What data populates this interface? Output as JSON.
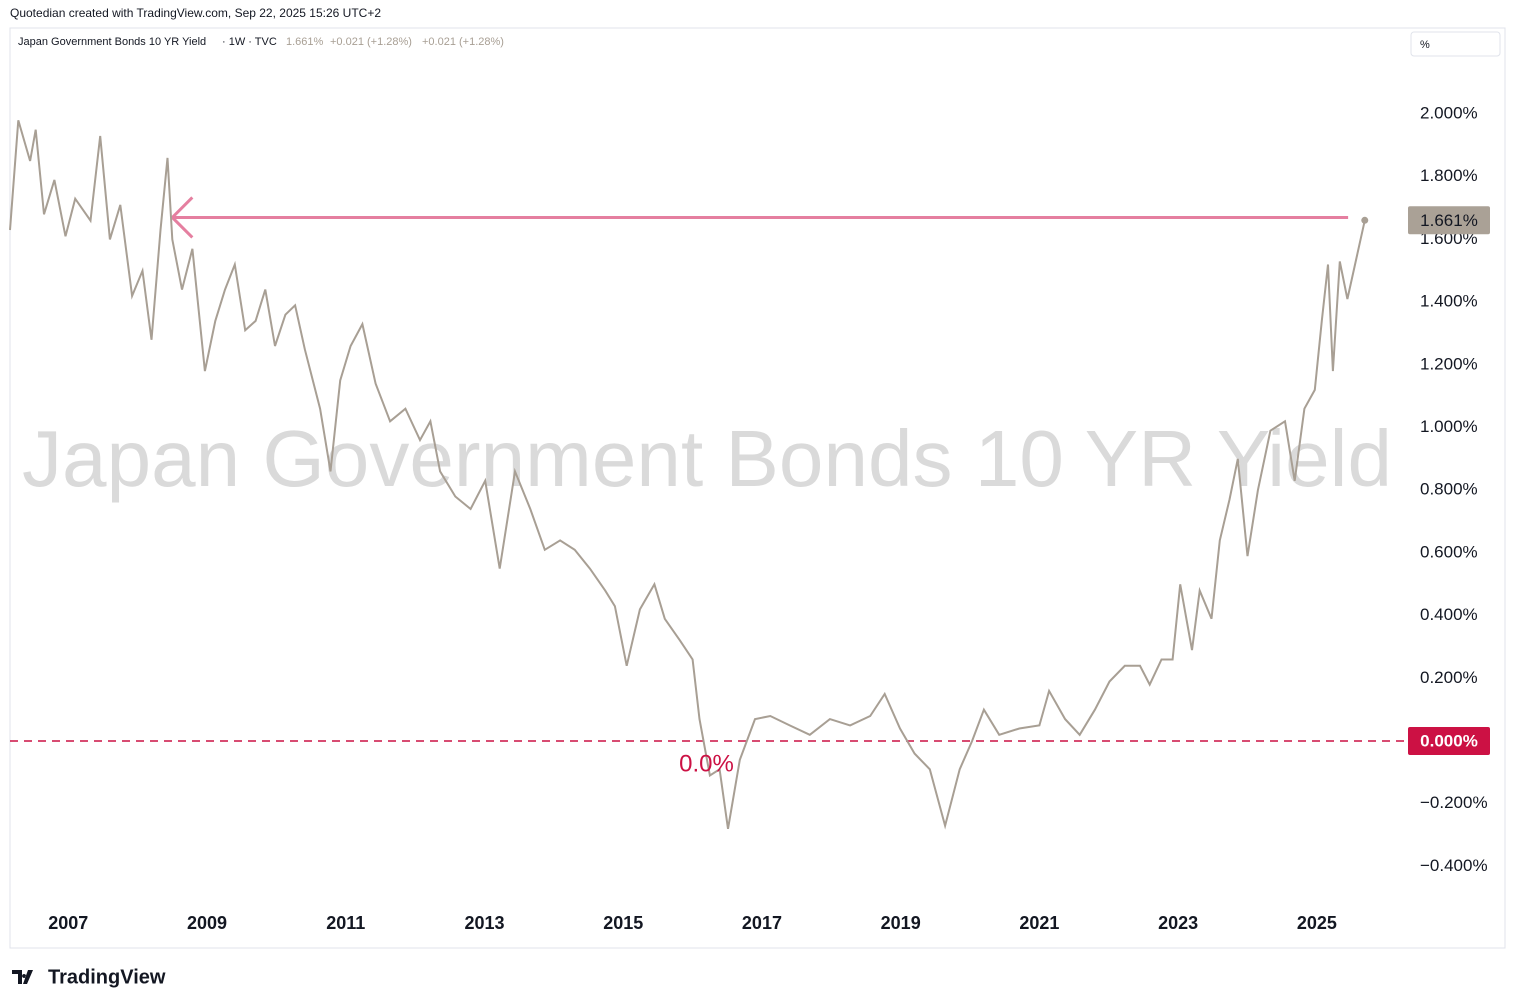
{
  "header": {
    "credit": "Quotedian created with TradingView.com, Sep 22, 2025 15:26 UTC+2",
    "logo": "TradingView"
  },
  "chart_data": {
    "type": "line",
    "title": "Japan Government Bonds 10 YR Yield",
    "legend_meta": "· 1W · TVC",
    "legend_values": [
      "1.661%",
      "+0.021 (+1.28%)",
      "+0.021 (+1.28%)"
    ],
    "scale_unit": "%",
    "color": "#a89f94",
    "x": [
      2006.16,
      2006.28,
      2006.45,
      2006.53,
      2006.65,
      2006.8,
      2006.96,
      2007.1,
      2007.32,
      2007.46,
      2007.6,
      2007.75,
      2007.92,
      2008.07,
      2008.2,
      2008.33,
      2008.43,
      2008.5,
      2008.64,
      2008.79,
      2008.97,
      2009.12,
      2009.26,
      2009.4,
      2009.55,
      2009.7,
      2009.84,
      2009.98,
      2010.13,
      2010.27,
      2010.41,
      2010.63,
      2010.78,
      2010.92,
      2011.07,
      2011.24,
      2011.43,
      2011.64,
      2011.86,
      2012.07,
      2012.22,
      2012.36,
      2012.58,
      2012.8,
      2013.01,
      2013.22,
      2013.44,
      2013.66,
      2013.87,
      2014.09,
      2014.3,
      2014.52,
      2014.74,
      2014.88,
      2015.05,
      2015.24,
      2015.45,
      2015.6,
      2015.82,
      2016.0,
      2016.1,
      2016.25,
      2016.39,
      2016.51,
      2016.68,
      2016.9,
      2017.12,
      2017.4,
      2017.69,
      2017.98,
      2018.27,
      2018.56,
      2018.77,
      2018.99,
      2019.2,
      2019.42,
      2019.64,
      2019.85,
      2020.03,
      2020.2,
      2020.42,
      2020.71,
      2021.0,
      2021.14,
      2021.37,
      2021.58,
      2021.8,
      2022.01,
      2022.23,
      2022.45,
      2022.59,
      2022.76,
      2022.92,
      2023.03,
      2023.2,
      2023.31,
      2023.48,
      2023.6,
      2023.74,
      2023.86,
      2024.0,
      2024.15,
      2024.33,
      2024.54,
      2024.68,
      2024.82,
      2024.97,
      2025.07,
      2025.16,
      2025.23,
      2025.33,
      2025.44,
      2025.58,
      2025.69
    ],
    "values": [
      1.63,
      1.98,
      1.85,
      1.95,
      1.68,
      1.79,
      1.61,
      1.73,
      1.66,
      1.93,
      1.6,
      1.71,
      1.42,
      1.5,
      1.28,
      1.63,
      1.86,
      1.6,
      1.44,
      1.57,
      1.18,
      1.34,
      1.44,
      1.52,
      1.31,
      1.34,
      1.44,
      1.26,
      1.36,
      1.39,
      1.25,
      1.06,
      0.86,
      1.15,
      1.26,
      1.33,
      1.14,
      1.02,
      1.06,
      0.96,
      1.02,
      0.86,
      0.78,
      0.74,
      0.83,
      0.55,
      0.86,
      0.74,
      0.61,
      0.64,
      0.61,
      0.55,
      0.48,
      0.43,
      0.24,
      0.42,
      0.5,
      0.39,
      0.32,
      0.26,
      0.07,
      -0.11,
      -0.09,
      -0.28,
      -0.06,
      0.07,
      0.08,
      0.05,
      0.02,
      0.07,
      0.05,
      0.08,
      0.15,
      0.04,
      -0.04,
      -0.09,
      -0.27,
      -0.09,
      0.0,
      0.1,
      0.02,
      0.04,
      0.05,
      0.16,
      0.07,
      0.02,
      0.1,
      0.19,
      0.24,
      0.24,
      0.18,
      0.26,
      0.26,
      0.5,
      0.29,
      0.48,
      0.39,
      0.64,
      0.77,
      0.9,
      0.59,
      0.8,
      0.99,
      1.02,
      0.83,
      1.06,
      1.12,
      1.34,
      1.52,
      1.18,
      1.53,
      1.41,
      1.55,
      1.661
    ],
    "xlim": [
      2006.16,
      2026.27
    ],
    "xticks": [
      2007,
      2009,
      2011,
      2013,
      2015,
      2017,
      2019,
      2021,
      2023,
      2025
    ],
    "ylim": [
      -0.507,
      2.268
    ],
    "yticks": [
      {
        "value": -0.4,
        "label": "−0.400%"
      },
      {
        "value": -0.2,
        "label": "−0.200%"
      },
      {
        "value": 0.2,
        "label": "0.200%"
      },
      {
        "value": 0.4,
        "label": "0.400%"
      },
      {
        "value": 0.6,
        "label": "0.600%"
      },
      {
        "value": 0.8,
        "label": "0.800%"
      },
      {
        "value": 1.0,
        "label": "1.000%"
      },
      {
        "value": 1.2,
        "label": "1.200%"
      },
      {
        "value": 1.4,
        "label": "1.400%"
      },
      {
        "value": 1.6,
        "label": "1.600%"
      },
      {
        "value": 1.8,
        "label": "1.800%"
      },
      {
        "value": 2.0,
        "label": "2.000%"
      }
    ],
    "price_labels": [
      {
        "value": 1.661,
        "label": "1.661%",
        "color": "#aaa196"
      },
      {
        "value": 0,
        "label": "0.000%",
        "color": "#cc1144"
      }
    ],
    "zero_line": {
      "value": 0,
      "label": "0.0%",
      "color": "#cc1144"
    },
    "arrow": {
      "value": 1.67,
      "x": [
        2008.5,
        2025.45
      ],
      "color": "#e57fa0"
    }
  }
}
